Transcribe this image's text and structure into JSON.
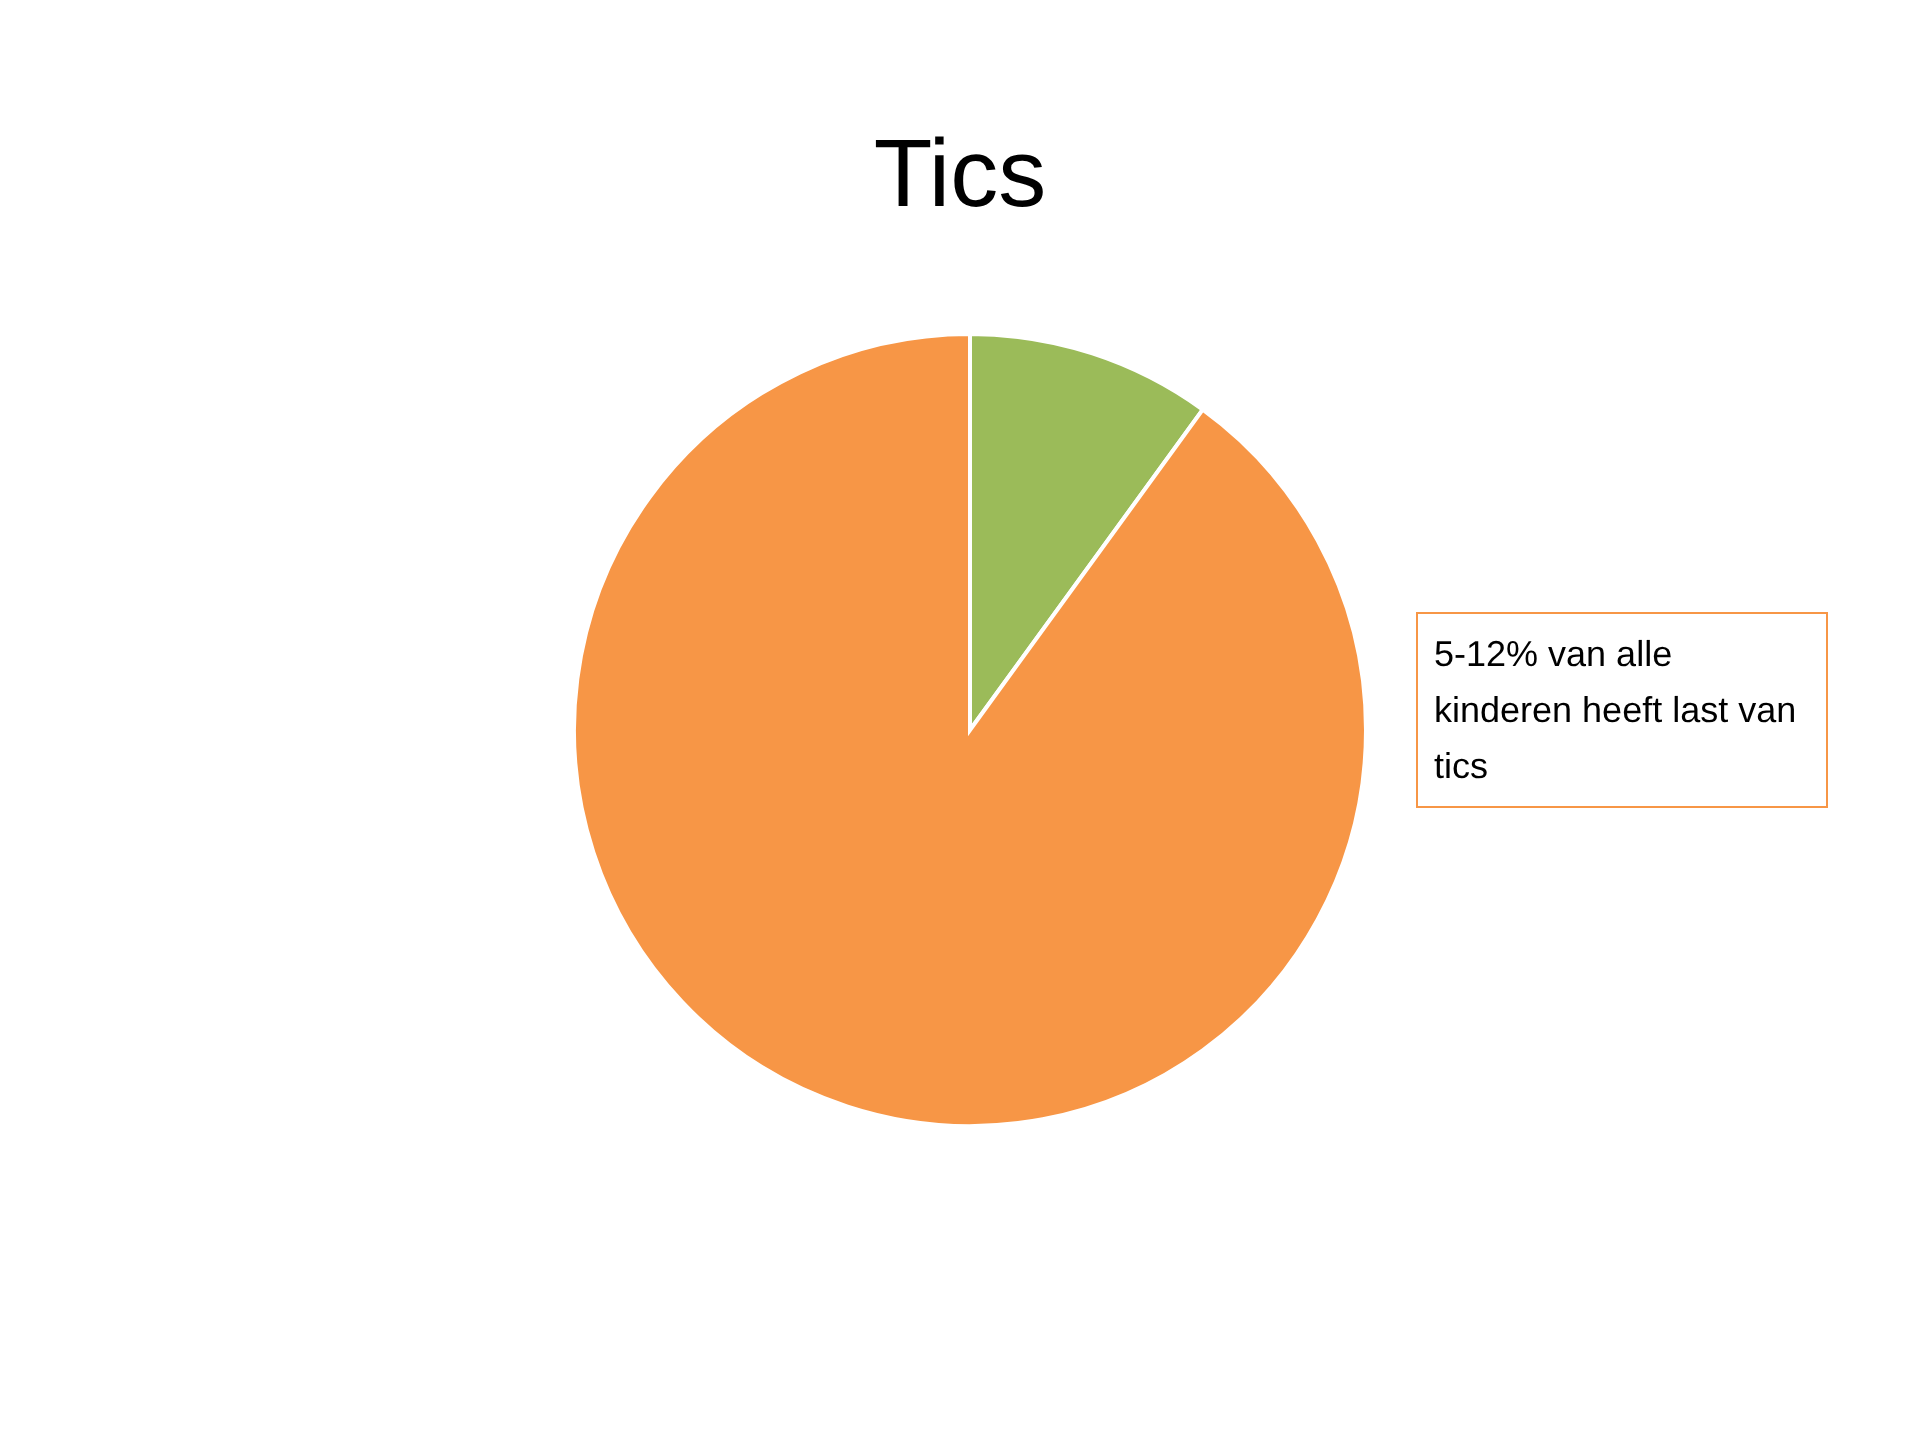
{
  "chart_data": {
    "type": "pie",
    "title": "Tics",
    "categories": [
      null,
      null
    ],
    "values": [
      10,
      90
    ],
    "colors": [
      "#9bbb59",
      "#f79646"
    ],
    "annotations": [
      "5-12% van alle kinderen heeft last van tics"
    ],
    "legend": false
  }
}
